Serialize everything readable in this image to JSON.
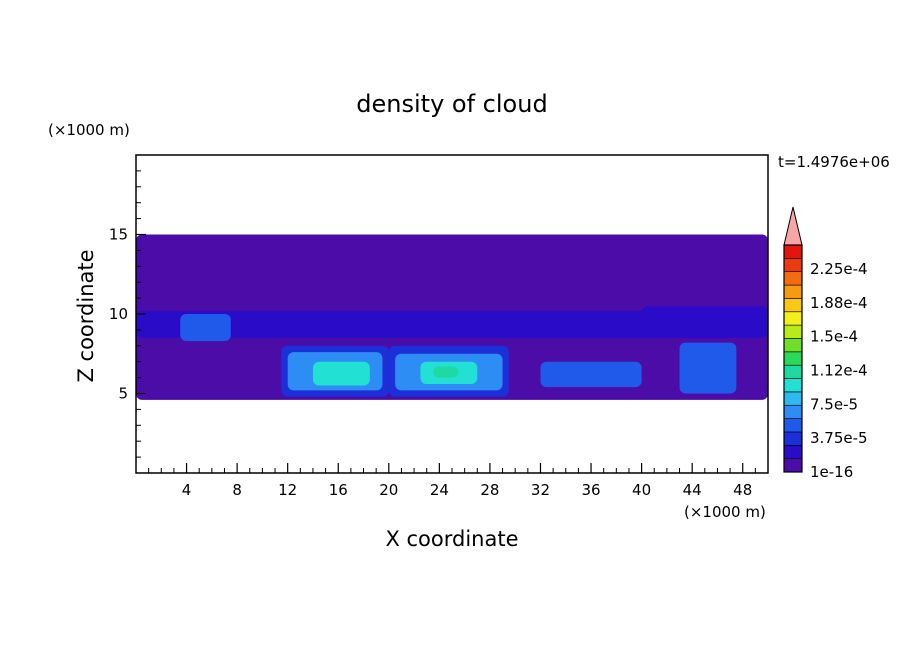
{
  "chart_data": {
    "type": "heatmap",
    "title": "density of cloud",
    "xlabel": "X coordinate",
    "ylabel": "Z coordinate",
    "x_unit": "(×1000 m)",
    "y_unit": "(×1000 m)",
    "time_label": "t=1.4976e+06",
    "xlim": [
      0,
      50
    ],
    "ylim": [
      0,
      20
    ],
    "x_ticks": [
      "4",
      "8",
      "12",
      "16",
      "20",
      "24",
      "28",
      "32",
      "36",
      "40",
      "44",
      "48"
    ],
    "y_ticks": [
      "5",
      "10",
      "15"
    ],
    "colorbar": {
      "labels": [
        "1e-16",
        "3.75e-5",
        "7.5e-5",
        "1.12e-4",
        "1.5e-4",
        "1.88e-4",
        "2.25e-4"
      ],
      "colors": [
        "#4B0CA8",
        "#2A0CC8",
        "#1C2FD8",
        "#1F5AEA",
        "#2E8CF5",
        "#2FB9F0",
        "#22E0D4",
        "#1ED9A0",
        "#2CD858",
        "#6FE02A",
        "#B8EC19",
        "#F2F01A",
        "#F8C815",
        "#F79A12",
        "#F26D10",
        "#EC3A10",
        "#E4140F",
        "#F7A6A6"
      ],
      "overflow_color": "#F7A6A6"
    },
    "field_blocks": [
      {
        "x": [
          0.0,
          50.0
        ],
        "z": [
          4.6,
          15.0
        ],
        "level": 0
      },
      {
        "x": [
          0.0,
          50.0
        ],
        "z": [
          8.5,
          10.2
        ],
        "level": 1
      },
      {
        "x": [
          3.5,
          7.5
        ],
        "z": [
          8.3,
          10.0
        ],
        "level": 3
      },
      {
        "x": [
          11.5,
          20.0
        ],
        "z": [
          4.8,
          8.0
        ],
        "level": 2
      },
      {
        "x": [
          12.0,
          19.5
        ],
        "z": [
          5.2,
          7.6
        ],
        "level": 4
      },
      {
        "x": [
          14.0,
          18.5
        ],
        "z": [
          5.5,
          7.0
        ],
        "level": 6
      },
      {
        "x": [
          20.0,
          29.5
        ],
        "z": [
          4.8,
          8.0
        ],
        "level": 2
      },
      {
        "x": [
          20.5,
          29.0
        ],
        "z": [
          5.2,
          7.5
        ],
        "level": 4
      },
      {
        "x": [
          22.5,
          27.0
        ],
        "z": [
          5.6,
          7.0
        ],
        "level": 6
      },
      {
        "x": [
          23.5,
          25.5
        ],
        "z": [
          6.0,
          6.7
        ],
        "level": 7
      },
      {
        "x": [
          32.0,
          40.0
        ],
        "z": [
          5.4,
          7.0
        ],
        "level": 3
      },
      {
        "x": [
          43.0,
          47.5
        ],
        "z": [
          5.0,
          8.2
        ],
        "level": 3
      },
      {
        "x": [
          40.0,
          50.0
        ],
        "z": [
          9.0,
          10.5
        ],
        "level": 1
      }
    ]
  }
}
